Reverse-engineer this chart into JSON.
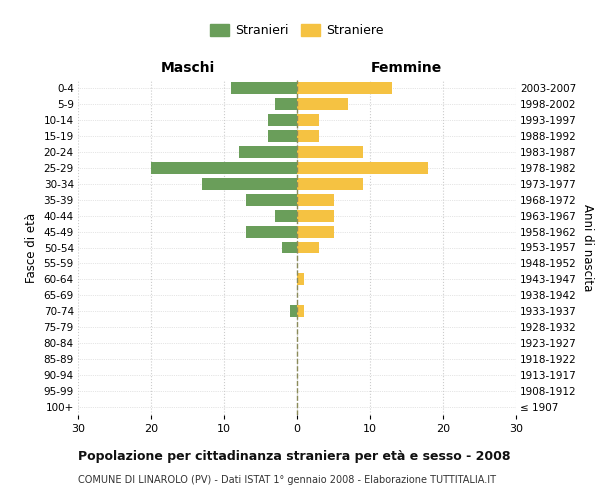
{
  "age_groups": [
    "100+",
    "95-99",
    "90-94",
    "85-89",
    "80-84",
    "75-79",
    "70-74",
    "65-69",
    "60-64",
    "55-59",
    "50-54",
    "45-49",
    "40-44",
    "35-39",
    "30-34",
    "25-29",
    "20-24",
    "15-19",
    "10-14",
    "5-9",
    "0-4"
  ],
  "birth_years": [
    "≤ 1907",
    "1908-1912",
    "1913-1917",
    "1918-1922",
    "1923-1927",
    "1928-1932",
    "1933-1937",
    "1938-1942",
    "1943-1947",
    "1948-1952",
    "1953-1957",
    "1958-1962",
    "1963-1967",
    "1968-1972",
    "1973-1977",
    "1978-1982",
    "1983-1987",
    "1988-1992",
    "1993-1997",
    "1998-2002",
    "2003-2007"
  ],
  "males": [
    0,
    0,
    0,
    0,
    0,
    0,
    1,
    0,
    0,
    0,
    2,
    7,
    3,
    7,
    13,
    20,
    8,
    4,
    4,
    3,
    9
  ],
  "females": [
    0,
    0,
    0,
    0,
    0,
    0,
    1,
    0,
    1,
    0,
    3,
    5,
    5,
    5,
    9,
    18,
    9,
    3,
    3,
    7,
    13
  ],
  "male_color": "#6a9e5a",
  "female_color": "#f5c242",
  "background_color": "#ffffff",
  "grid_color": "#cccccc",
  "center_line_color": "#8b8b5a",
  "title": "Popolazione per cittadinanza straniera per età e sesso - 2008",
  "subtitle": "COMUNE DI LINAROLO (PV) - Dati ISTAT 1° gennaio 2008 - Elaborazione TUTTITALIA.IT",
  "xlabel_left": "Maschi",
  "xlabel_right": "Femmine",
  "ylabel_left": "Fasce di età",
  "ylabel_right": "Anni di nascita",
  "legend_stranieri": "Stranieri",
  "legend_straniere": "Straniere",
  "xlim": 30,
  "xticks": [
    30,
    20,
    10,
    0,
    10,
    20,
    30
  ]
}
